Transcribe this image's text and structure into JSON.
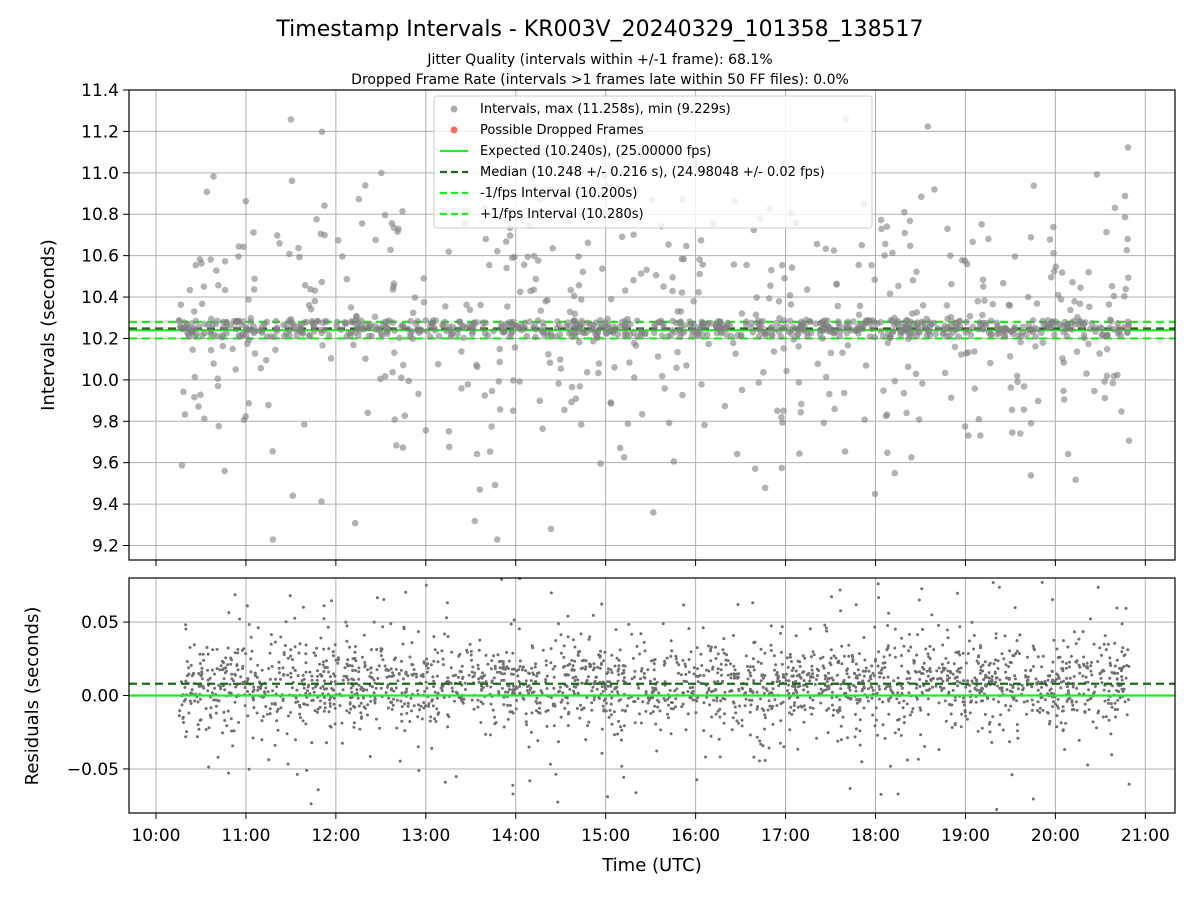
{
  "figure": {
    "title": "Timestamp Intervals - KR003V_20240329_101358_138517",
    "subtitle_1": "Jitter Quality (intervals within +/-1 frame): 68.1%",
    "subtitle_2": "Dropped Frame Rate (intervals >1 frames late within 50 FF files): 0.0%"
  },
  "colors": {
    "points": "#808080",
    "dropped": "#ff5555",
    "expected": "#19f019",
    "median": "#1a6b1a",
    "grid": "#b0b0b0"
  },
  "legend": {
    "intervals": "Intervals, max (11.258s), min (9.229s)",
    "dropped": "Possible Dropped Frames",
    "expected": "Expected (10.240s), (25.00000 fps)",
    "median": "Median (10.248 +/- 0.216 s), (24.98048 +/- 0.02 fps)",
    "minus_fps": "-1/fps Interval (10.200s)",
    "plus_fps": "+1/fps Interval (10.280s)"
  },
  "chart_data": [
    {
      "type": "scatter",
      "ylabel": "Intervals (seconds)",
      "ylim": [
        9.13,
        11.4
      ],
      "yticks": [
        "9.2",
        "9.4",
        "9.6",
        "9.8",
        "10.0",
        "10.2",
        "10.4",
        "10.6",
        "10.8",
        "11.0",
        "11.2",
        "11.4"
      ],
      "xlim_hours": [
        9.7,
        21.33
      ],
      "grid": true,
      "legend_position": "upper-center",
      "series": [
        {
          "name": "Intervals, max (11.258s), min (9.229s)",
          "time_range_hours": [
            10.25,
            20.82
          ],
          "count": 1200,
          "center": 10.248,
          "max": 11.258,
          "min": 9.229
        },
        {
          "name": "Possible Dropped Frames",
          "count": 0
        }
      ],
      "reference_lines": [
        {
          "name": "Expected (10.240s), (25.00000 fps)",
          "y": 10.24,
          "style": "solid"
        },
        {
          "name": "Median (10.248 +/- 0.216 s), (24.98048 +/- 0.02 fps)",
          "y": 10.248,
          "style": "dashed"
        },
        {
          "name": "-1/fps Interval (10.200s)",
          "y": 10.2,
          "style": "dashed"
        },
        {
          "name": "+1/fps Interval (10.280s)",
          "y": 10.28,
          "style": "dashed"
        }
      ]
    },
    {
      "type": "scatter",
      "ylabel": "Residuals (seconds)",
      "xlabel": "Time (UTC)",
      "ylim": [
        -0.08,
        0.08
      ],
      "yticks": [
        "−0.05",
        "0.00",
        "0.05"
      ],
      "xlim_hours": [
        9.7,
        21.33
      ],
      "xticks": [
        "10:00",
        "11:00",
        "12:00",
        "13:00",
        "14:00",
        "15:00",
        "16:00",
        "17:00",
        "18:00",
        "19:00",
        "20:00",
        "21:00"
      ],
      "grid": true,
      "series": [
        {
          "name": "Residuals",
          "time_range_hours": [
            10.25,
            20.82
          ],
          "count": 2400,
          "center": 0.008
        }
      ],
      "reference_lines": [
        {
          "y": 0.0,
          "style": "solid"
        },
        {
          "y": 0.008,
          "style": "dashed"
        }
      ]
    }
  ]
}
